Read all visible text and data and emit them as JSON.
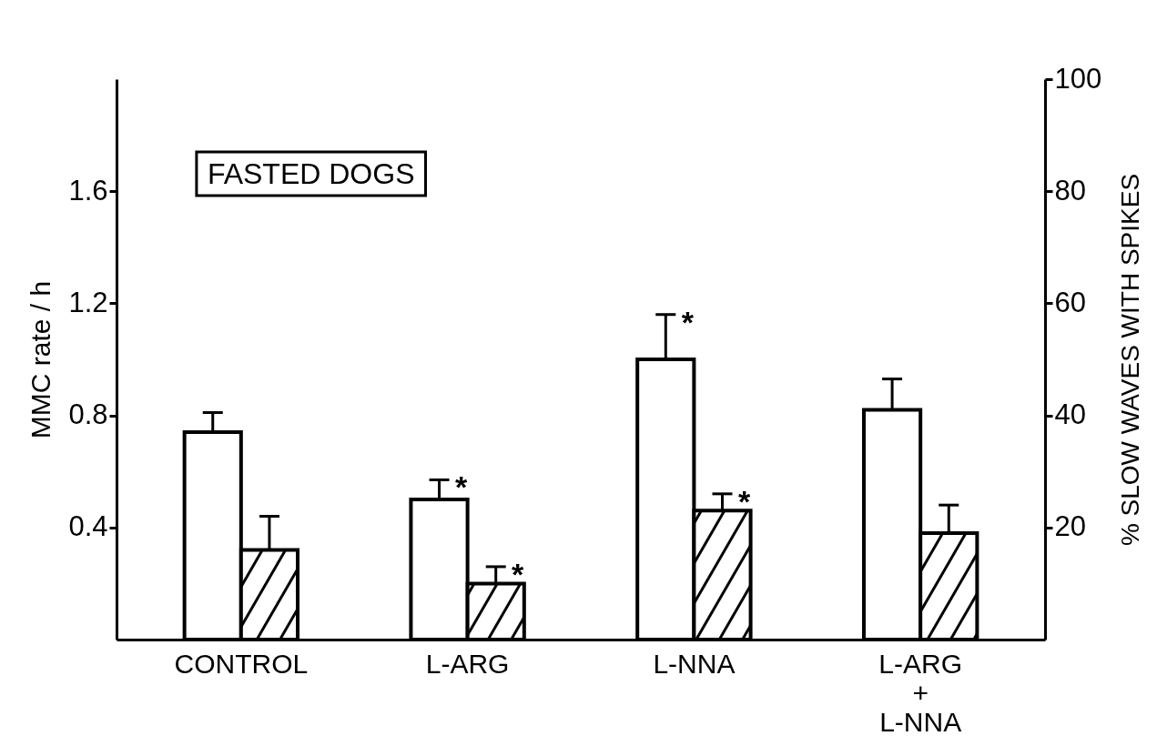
{
  "chart_data": {
    "type": "bar",
    "title": "FASTED DOGS",
    "ylabel": "MMC rate / h",
    "y2label": "% SLOW WAVES WITH SPIKES",
    "categories": [
      "CONTROL",
      "L-ARG",
      "L-NNA",
      "L-ARG\n+\nL-NNA"
    ],
    "series": [
      {
        "color": "#ffffff",
        "values": [
          0.74,
          0.5,
          1.0,
          0.82
        ],
        "errors": [
          [
            0.74,
            0.81
          ],
          [
            0.5,
            0.57
          ],
          [
            1.0,
            1.16
          ],
          [
            0.82,
            0.93
          ]
        ],
        "value_labels": [
          null,
          "*",
          "*",
          null
        ]
      },
      {
        "color": "#000000",
        "axis": "y2",
        "values": [
          16,
          10,
          23,
          19
        ],
        "errors": [
          [
            16,
            22
          ],
          [
            10,
            13
          ],
          [
            23,
            26
          ],
          [
            19,
            24
          ]
        ],
        "value_labels": [
          null,
          "*",
          "*",
          null
        ]
      }
    ],
    "ylim": [
      0,
      2.0
    ],
    "yticks": [
      0.4,
      0.8,
      1.2,
      1.6
    ],
    "y2lim": [
      0,
      100
    ],
    "y2ticks": [
      20,
      40,
      60,
      80,
      100
    ],
    "grid": false
  }
}
